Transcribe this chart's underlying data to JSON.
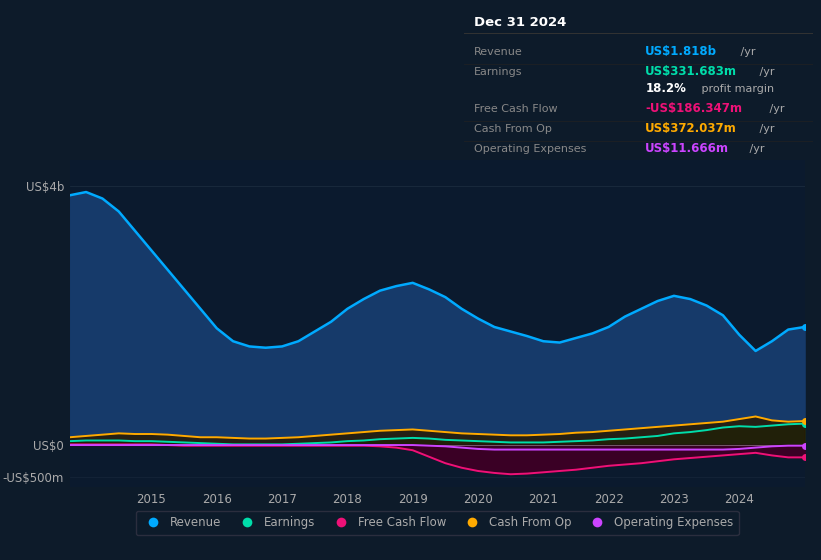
{
  "bg_color": "#0d1b2a",
  "plot_bg_color": "#0b1a2e",
  "text_color": "#aaaaaa",
  "years": [
    2013.75,
    2014.0,
    2014.25,
    2014.5,
    2014.75,
    2015.0,
    2015.25,
    2015.5,
    2015.75,
    2016.0,
    2016.25,
    2016.5,
    2016.75,
    2017.0,
    2017.25,
    2017.5,
    2017.75,
    2018.0,
    2018.25,
    2018.5,
    2018.75,
    2019.0,
    2019.25,
    2019.5,
    2019.75,
    2020.0,
    2020.25,
    2020.5,
    2020.75,
    2021.0,
    2021.25,
    2021.5,
    2021.75,
    2022.0,
    2022.25,
    2022.5,
    2022.75,
    2023.0,
    2023.25,
    2023.5,
    2023.75,
    2024.0,
    2024.25,
    2024.5,
    2024.75,
    2025.0
  ],
  "revenue": [
    3.85,
    3.9,
    3.8,
    3.6,
    3.3,
    3.0,
    2.7,
    2.4,
    2.1,
    1.8,
    1.6,
    1.52,
    1.5,
    1.52,
    1.6,
    1.75,
    1.9,
    2.1,
    2.25,
    2.38,
    2.45,
    2.5,
    2.4,
    2.28,
    2.1,
    1.95,
    1.82,
    1.75,
    1.68,
    1.6,
    1.58,
    1.65,
    1.72,
    1.82,
    1.98,
    2.1,
    2.22,
    2.3,
    2.25,
    2.15,
    2.0,
    1.7,
    1.45,
    1.6,
    1.78,
    1.82
  ],
  "earnings": [
    0.06,
    0.07,
    0.07,
    0.07,
    0.06,
    0.06,
    0.05,
    0.04,
    0.03,
    0.02,
    0.01,
    0.01,
    0.01,
    0.01,
    0.02,
    0.03,
    0.04,
    0.06,
    0.07,
    0.09,
    0.1,
    0.11,
    0.1,
    0.08,
    0.07,
    0.06,
    0.05,
    0.04,
    0.04,
    0.04,
    0.05,
    0.06,
    0.07,
    0.09,
    0.1,
    0.12,
    0.14,
    0.18,
    0.2,
    0.23,
    0.27,
    0.29,
    0.28,
    0.3,
    0.32,
    0.33
  ],
  "free_cash_flow": [
    0.01,
    0.01,
    0.01,
    0.01,
    0.01,
    0.01,
    0.0,
    -0.01,
    -0.01,
    -0.01,
    -0.01,
    -0.01,
    -0.01,
    -0.01,
    -0.01,
    -0.01,
    -0.01,
    -0.01,
    -0.01,
    -0.02,
    -0.04,
    -0.08,
    -0.18,
    -0.28,
    -0.35,
    -0.4,
    -0.43,
    -0.45,
    -0.44,
    -0.42,
    -0.4,
    -0.38,
    -0.35,
    -0.32,
    -0.3,
    -0.28,
    -0.25,
    -0.22,
    -0.2,
    -0.18,
    -0.16,
    -0.14,
    -0.12,
    -0.16,
    -0.19,
    -0.19
  ],
  "cash_from_op": [
    0.12,
    0.14,
    0.16,
    0.18,
    0.17,
    0.17,
    0.16,
    0.14,
    0.12,
    0.12,
    0.11,
    0.1,
    0.1,
    0.11,
    0.12,
    0.14,
    0.16,
    0.18,
    0.2,
    0.22,
    0.23,
    0.24,
    0.22,
    0.2,
    0.18,
    0.17,
    0.16,
    0.15,
    0.15,
    0.16,
    0.17,
    0.19,
    0.2,
    0.22,
    0.24,
    0.26,
    0.28,
    0.3,
    0.32,
    0.34,
    0.36,
    0.4,
    0.44,
    0.38,
    0.36,
    0.37
  ],
  "operating_expenses": [
    0.0,
    0.0,
    0.0,
    0.0,
    0.0,
    0.0,
    0.0,
    0.0,
    0.0,
    0.0,
    0.0,
    0.0,
    0.0,
    0.0,
    0.0,
    0.0,
    0.0,
    0.0,
    0.0,
    0.0,
    0.0,
    0.0,
    -0.01,
    -0.02,
    -0.04,
    -0.06,
    -0.07,
    -0.07,
    -0.07,
    -0.07,
    -0.07,
    -0.07,
    -0.07,
    -0.07,
    -0.07,
    -0.07,
    -0.07,
    -0.07,
    -0.07,
    -0.07,
    -0.07,
    -0.06,
    -0.04,
    -0.02,
    -0.01,
    -0.01
  ],
  "revenue_color": "#00aaff",
  "revenue_fill": "#163a6a",
  "earnings_color": "#00ddaa",
  "earnings_fill": "#003a30",
  "fcf_color": "#ee1177",
  "fcf_fill": "#3a0025",
  "cashop_color": "#ffaa00",
  "cashop_fill": "#2a1a00",
  "opex_color": "#cc44ff",
  "opex_fill": "#1a0030",
  "ylim": [
    -0.65,
    4.4
  ],
  "yticks": [
    -0.5,
    0.0,
    4.0
  ],
  "ytick_labels": [
    "-US$500m",
    "US$0",
    "US$4b"
  ],
  "xtick_positions": [
    2015,
    2016,
    2017,
    2018,
    2019,
    2020,
    2021,
    2022,
    2023,
    2024
  ],
  "xtick_labels": [
    "2015",
    "2016",
    "2017",
    "2018",
    "2019",
    "2020",
    "2021",
    "2022",
    "2023",
    "2024"
  ],
  "legend_labels": [
    "Revenue",
    "Earnings",
    "Free Cash Flow",
    "Cash From Op",
    "Operating Expenses"
  ],
  "legend_colors": [
    "#00aaff",
    "#00ddaa",
    "#ee1177",
    "#ffaa00",
    "#cc44ff"
  ],
  "info_box": {
    "title": "Dec 31 2024",
    "rows": [
      {
        "label": "Revenue",
        "value": "US$1.818b",
        "suffix": " /yr",
        "value_color": "#00aaff"
      },
      {
        "label": "Earnings",
        "value": "US$331.683m",
        "suffix": " /yr",
        "value_color": "#00ddaa"
      },
      {
        "label": "",
        "value": "18.2%",
        "suffix": " profit margin",
        "value_color": "#ffffff"
      },
      {
        "label": "Free Cash Flow",
        "value": "-US$186.347m",
        "suffix": " /yr",
        "value_color": "#ee1177"
      },
      {
        "label": "Cash From Op",
        "value": "US$372.037m",
        "suffix": " /yr",
        "value_color": "#ffaa00"
      },
      {
        "label": "Operating Expenses",
        "value": "US$11.666m",
        "suffix": " /yr",
        "value_color": "#cc44ff"
      }
    ]
  }
}
